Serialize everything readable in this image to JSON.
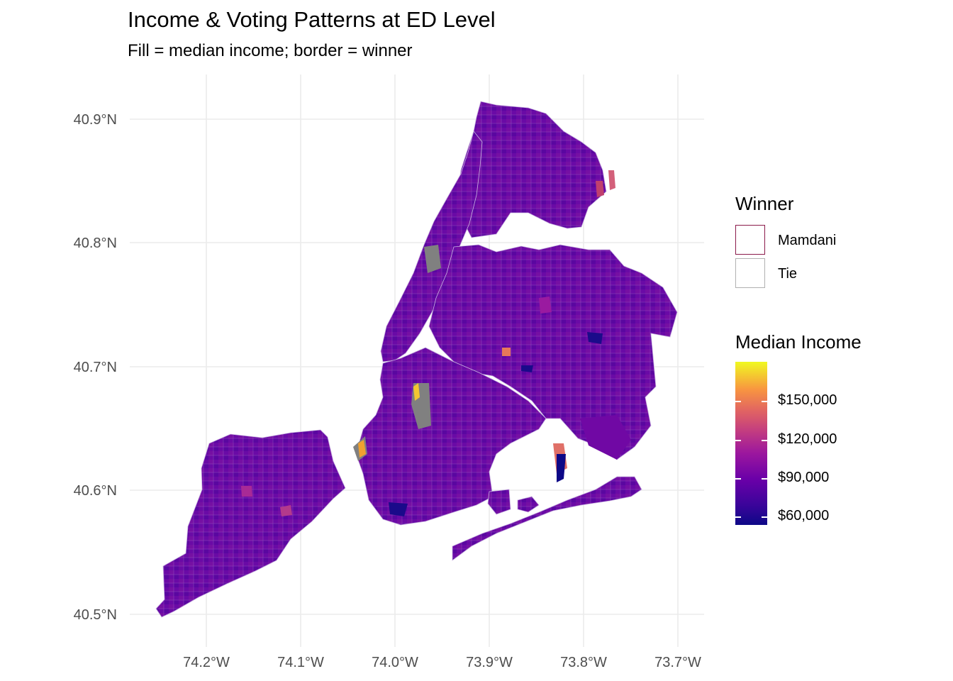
{
  "title": "Income & Voting Patterns at ED Level",
  "subtitle": "Fill = median income; border = winner",
  "axes": {
    "y_ticks": [
      "40.9°N",
      "40.8°N",
      "40.7°N",
      "40.6°N",
      "40.5°N"
    ],
    "x_ticks": [
      "74.2°W",
      "74.1°W",
      "74.0°W",
      "73.9°W",
      "73.8°W",
      "73.7°W"
    ],
    "grid": true
  },
  "legend_winner": {
    "title": "Winner",
    "items": [
      {
        "label": "Mamdani",
        "border_color": "#8b1a4a"
      },
      {
        "label": "Tie",
        "border_color": "#b0b0b0"
      }
    ]
  },
  "legend_income": {
    "title": "Median Income",
    "ticks": [
      "$150,000",
      "$120,000",
      "$90,000",
      "$60,000"
    ],
    "palette": "plasma",
    "colors": {
      "low": "#0d0887",
      "mid": "#9c179e",
      "high": "#f0f921"
    }
  },
  "colors": {
    "base_fill": "#6a0aa6",
    "gridline": "#ebebeb",
    "missing": "#808080"
  }
}
